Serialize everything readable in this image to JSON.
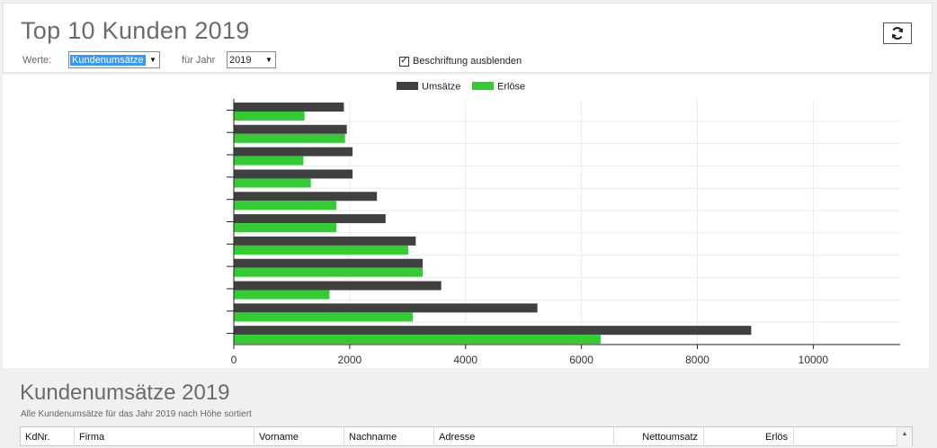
{
  "header": {
    "title": "Top 10 Kunden 2019",
    "werte_label": "Werte:",
    "werte_value": "Kundenumsätze",
    "jahr_label": "für Jahr",
    "jahr_value": "2019",
    "hide_labels_checkbox": "Beschriftung ausblenden",
    "hide_labels_checked": true
  },
  "chart_data": {
    "type": "bar",
    "orientation": "horizontal",
    "legend_position": "top-center",
    "series": [
      {
        "name": "Umsätze",
        "color": "#404040",
        "values": [
          1900,
          1950,
          2050,
          2050,
          2470,
          2620,
          3140,
          3260,
          3580,
          5240,
          8930
        ]
      },
      {
        "name": "Erlöse",
        "color": "#33cc33",
        "values": [
          1220,
          1920,
          1200,
          1330,
          1770,
          1770,
          3010,
          3260,
          1650,
          3090,
          6330
        ]
      }
    ],
    "x_ticks": [
      "0",
      "2000",
      "4000",
      "6000",
      "8000",
      "10000"
    ],
    "xlim": [
      0,
      11500
    ],
    "grid": true
  },
  "section": {
    "title": "Kundenumsätze 2019",
    "description": "Alle Kundenumsätze für das Jahr 2019 nach Höhe sortiert"
  },
  "table": {
    "columns": [
      "KdNr.",
      "Firma",
      "Vorname",
      "Nachname",
      "Adresse",
      "Nettoumsatz",
      "Erlös"
    ]
  },
  "icons": {
    "refresh": "refresh-icon"
  }
}
